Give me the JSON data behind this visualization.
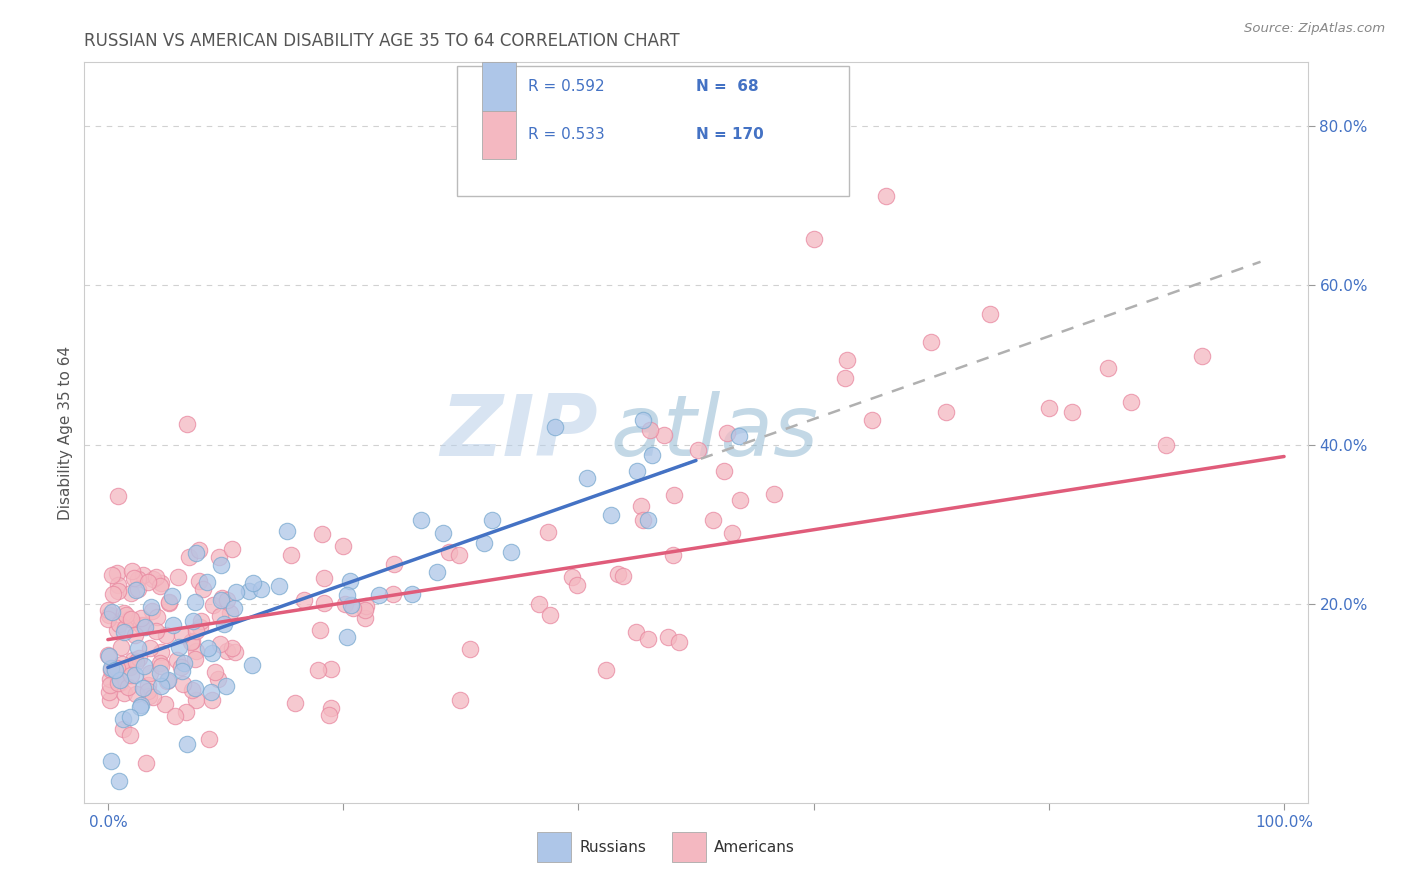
{
  "title": "RUSSIAN VS AMERICAN DISABILITY AGE 35 TO 64 CORRELATION CHART",
  "source": "Source: ZipAtlas.com",
  "ylabel": "Disability Age 35 to 64",
  "yticks": [
    "20.0%",
    "40.0%",
    "60.0%",
    "80.0%"
  ],
  "ytick_vals": [
    0.2,
    0.4,
    0.6,
    0.8
  ],
  "legend_r_russian": "R = 0.592",
  "legend_n_russian": "N =  68",
  "legend_r_american": "R = 0.533",
  "legend_n_american": "N = 170",
  "legend_label_russian": "Russians",
  "legend_label_american": "Americans",
  "color_russian_fill": "#aec6e8",
  "color_russian_edge": "#7aaad0",
  "color_american_fill": "#f4b8c1",
  "color_american_edge": "#e888a0",
  "color_line_russian": "#4472c4",
  "color_line_american": "#e05c7a",
  "color_trend_dashed": "#b0b0b0",
  "watermark_zip": "ZIP",
  "watermark_atlas": "atlas",
  "title_color": "#555555",
  "source_color": "#888888",
  "axis_label_color": "#4472c4",
  "background_color": "#ffffff",
  "plot_background": "#ffffff",
  "grid_color": "#cccccc",
  "xlim": [
    -0.02,
    1.02
  ],
  "ylim": [
    -0.05,
    0.88
  ],
  "rus_line_x0": 0.0,
  "rus_line_y0": 0.12,
  "rus_line_x1": 0.5,
  "rus_line_y1": 0.38,
  "ame_line_x0": 0.0,
  "ame_line_y0": 0.155,
  "ame_line_x1": 1.0,
  "ame_line_y1": 0.385,
  "dash_line_x0": 0.45,
  "dash_line_x1": 0.98,
  "grid_dashes": [
    4,
    4
  ]
}
